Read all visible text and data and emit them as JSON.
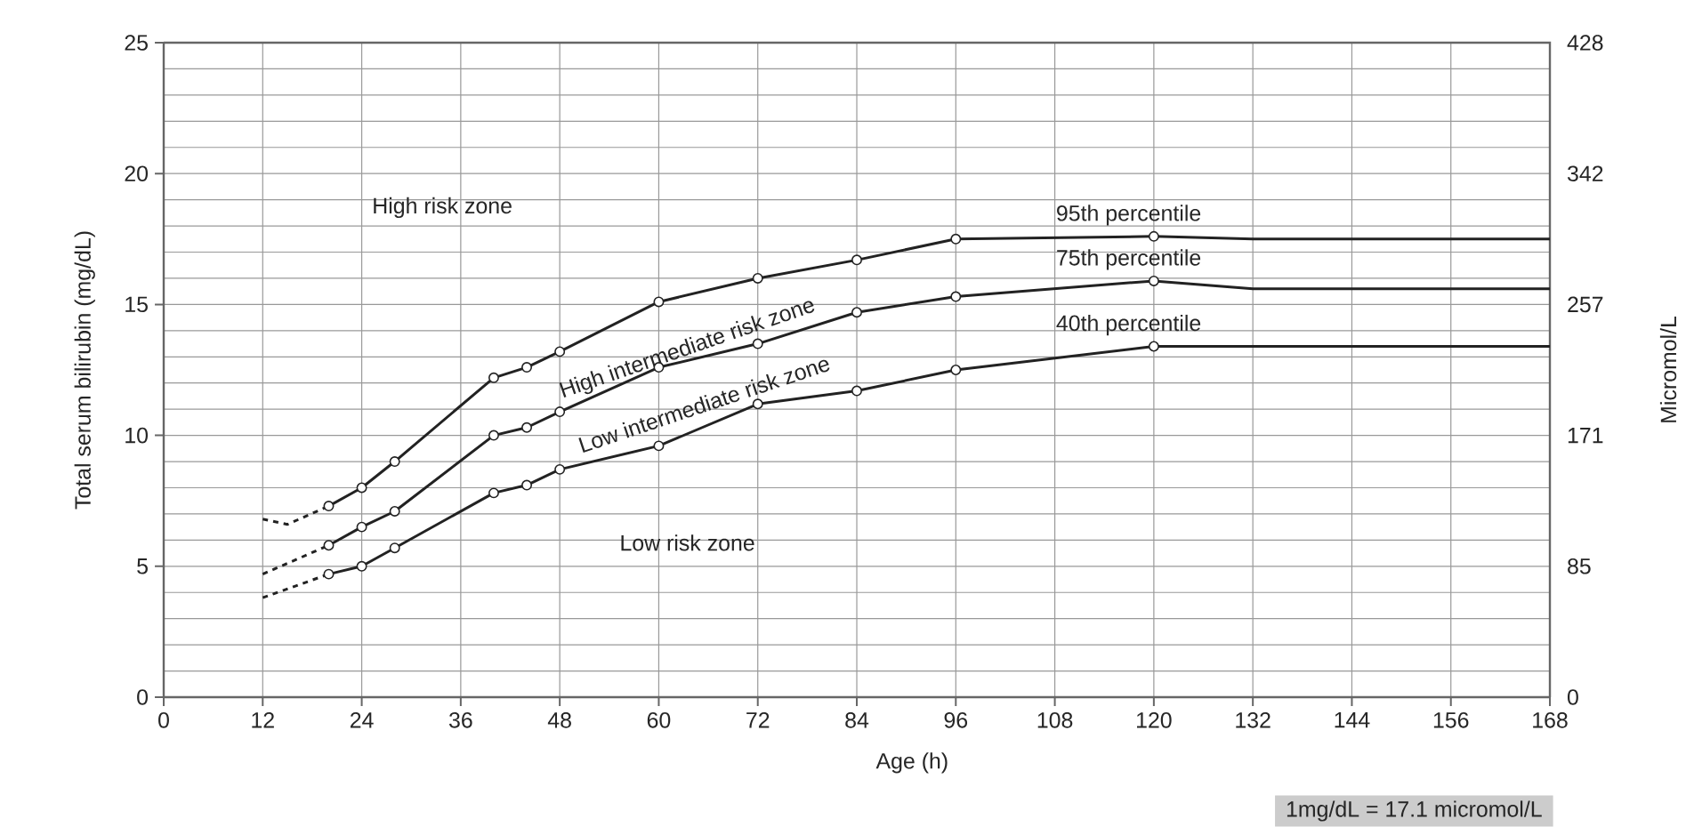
{
  "chart_data": {
    "type": "line",
    "xlabel": "Age (h)",
    "ylabel": "Total serum bilirubin (mg/dL)",
    "y2label": "Micromol/L",
    "xlim": [
      0,
      168
    ],
    "xticks": [
      0,
      12,
      24,
      36,
      48,
      60,
      72,
      84,
      96,
      108,
      120,
      132,
      144,
      156,
      168
    ],
    "ylim": [
      0,
      25
    ],
    "yticks": [
      0,
      5,
      10,
      15,
      20,
      25
    ],
    "y2lim": [
      0,
      427.5
    ],
    "y2ticks": [
      0,
      {
        "value": 85.5,
        "label": "85"
      },
      171,
      {
        "value": 256.5,
        "label": "257"
      },
      342,
      {
        "value": 427.5,
        "label": "428"
      }
    ],
    "grid": true,
    "marker": "circle",
    "line_style": "solid",
    "series": [
      {
        "name": "95th percentile",
        "color": "#222222",
        "x": [
          20,
          24,
          28,
          40,
          44,
          48,
          60,
          72,
          84,
          96,
          120
        ],
        "values": [
          7.3,
          8.0,
          9.0,
          12.2,
          12.6,
          13.2,
          15.1,
          16.0,
          16.7,
          17.5,
          17.6
        ]
      },
      {
        "color": "#222222",
        "x": [
          12,
          15,
          20
        ],
        "values": [
          6.8,
          6.6,
          7.3
        ],
        "line_style": "dashed",
        "marker": "none"
      },
      {
        "color": "#222222",
        "x": [
          120,
          132,
          168
        ],
        "values": [
          17.6,
          17.5,
          17.5
        ],
        "marker": "none"
      },
      {
        "name": "75th percentile",
        "color": "#222222",
        "x": [
          20,
          24,
          28,
          40,
          44,
          48,
          60,
          72,
          84,
          96,
          120
        ],
        "values": [
          5.8,
          6.5,
          7.1,
          10.0,
          10.3,
          10.9,
          12.6,
          13.5,
          14.7,
          15.3,
          15.9
        ]
      },
      {
        "color": "#222222",
        "x": [
          12,
          20
        ],
        "values": [
          4.7,
          5.8
        ],
        "line_style": "dashed",
        "marker": "none"
      },
      {
        "color": "#222222",
        "x": [
          120,
          132,
          168
        ],
        "values": [
          15.9,
          15.6,
          15.6
        ],
        "marker": "none"
      },
      {
        "name": "40th percentile",
        "color": "#222222",
        "x": [
          20,
          24,
          28,
          40,
          44,
          48,
          60,
          72,
          84,
          96,
          120
        ],
        "values": [
          4.7,
          5.0,
          5.7,
          7.8,
          8.1,
          8.7,
          9.6,
          11.2,
          11.7,
          12.5,
          13.4
        ]
      },
      {
        "color": "#222222",
        "x": [
          12,
          20
        ],
        "values": [
          3.8,
          4.7
        ],
        "line_style": "dashed",
        "marker": "none"
      },
      {
        "color": "#222222",
        "x": [
          120,
          132,
          168
        ],
        "values": [
          13.4,
          13.4,
          13.4
        ],
        "marker": "none"
      }
    ],
    "annotations": [
      "High risk zone",
      "High intermediate  risk zone",
      "Low intermediate risk zone",
      "Low risk zone",
      "1mg/dL = 17.1 micromol/L"
    ]
  }
}
